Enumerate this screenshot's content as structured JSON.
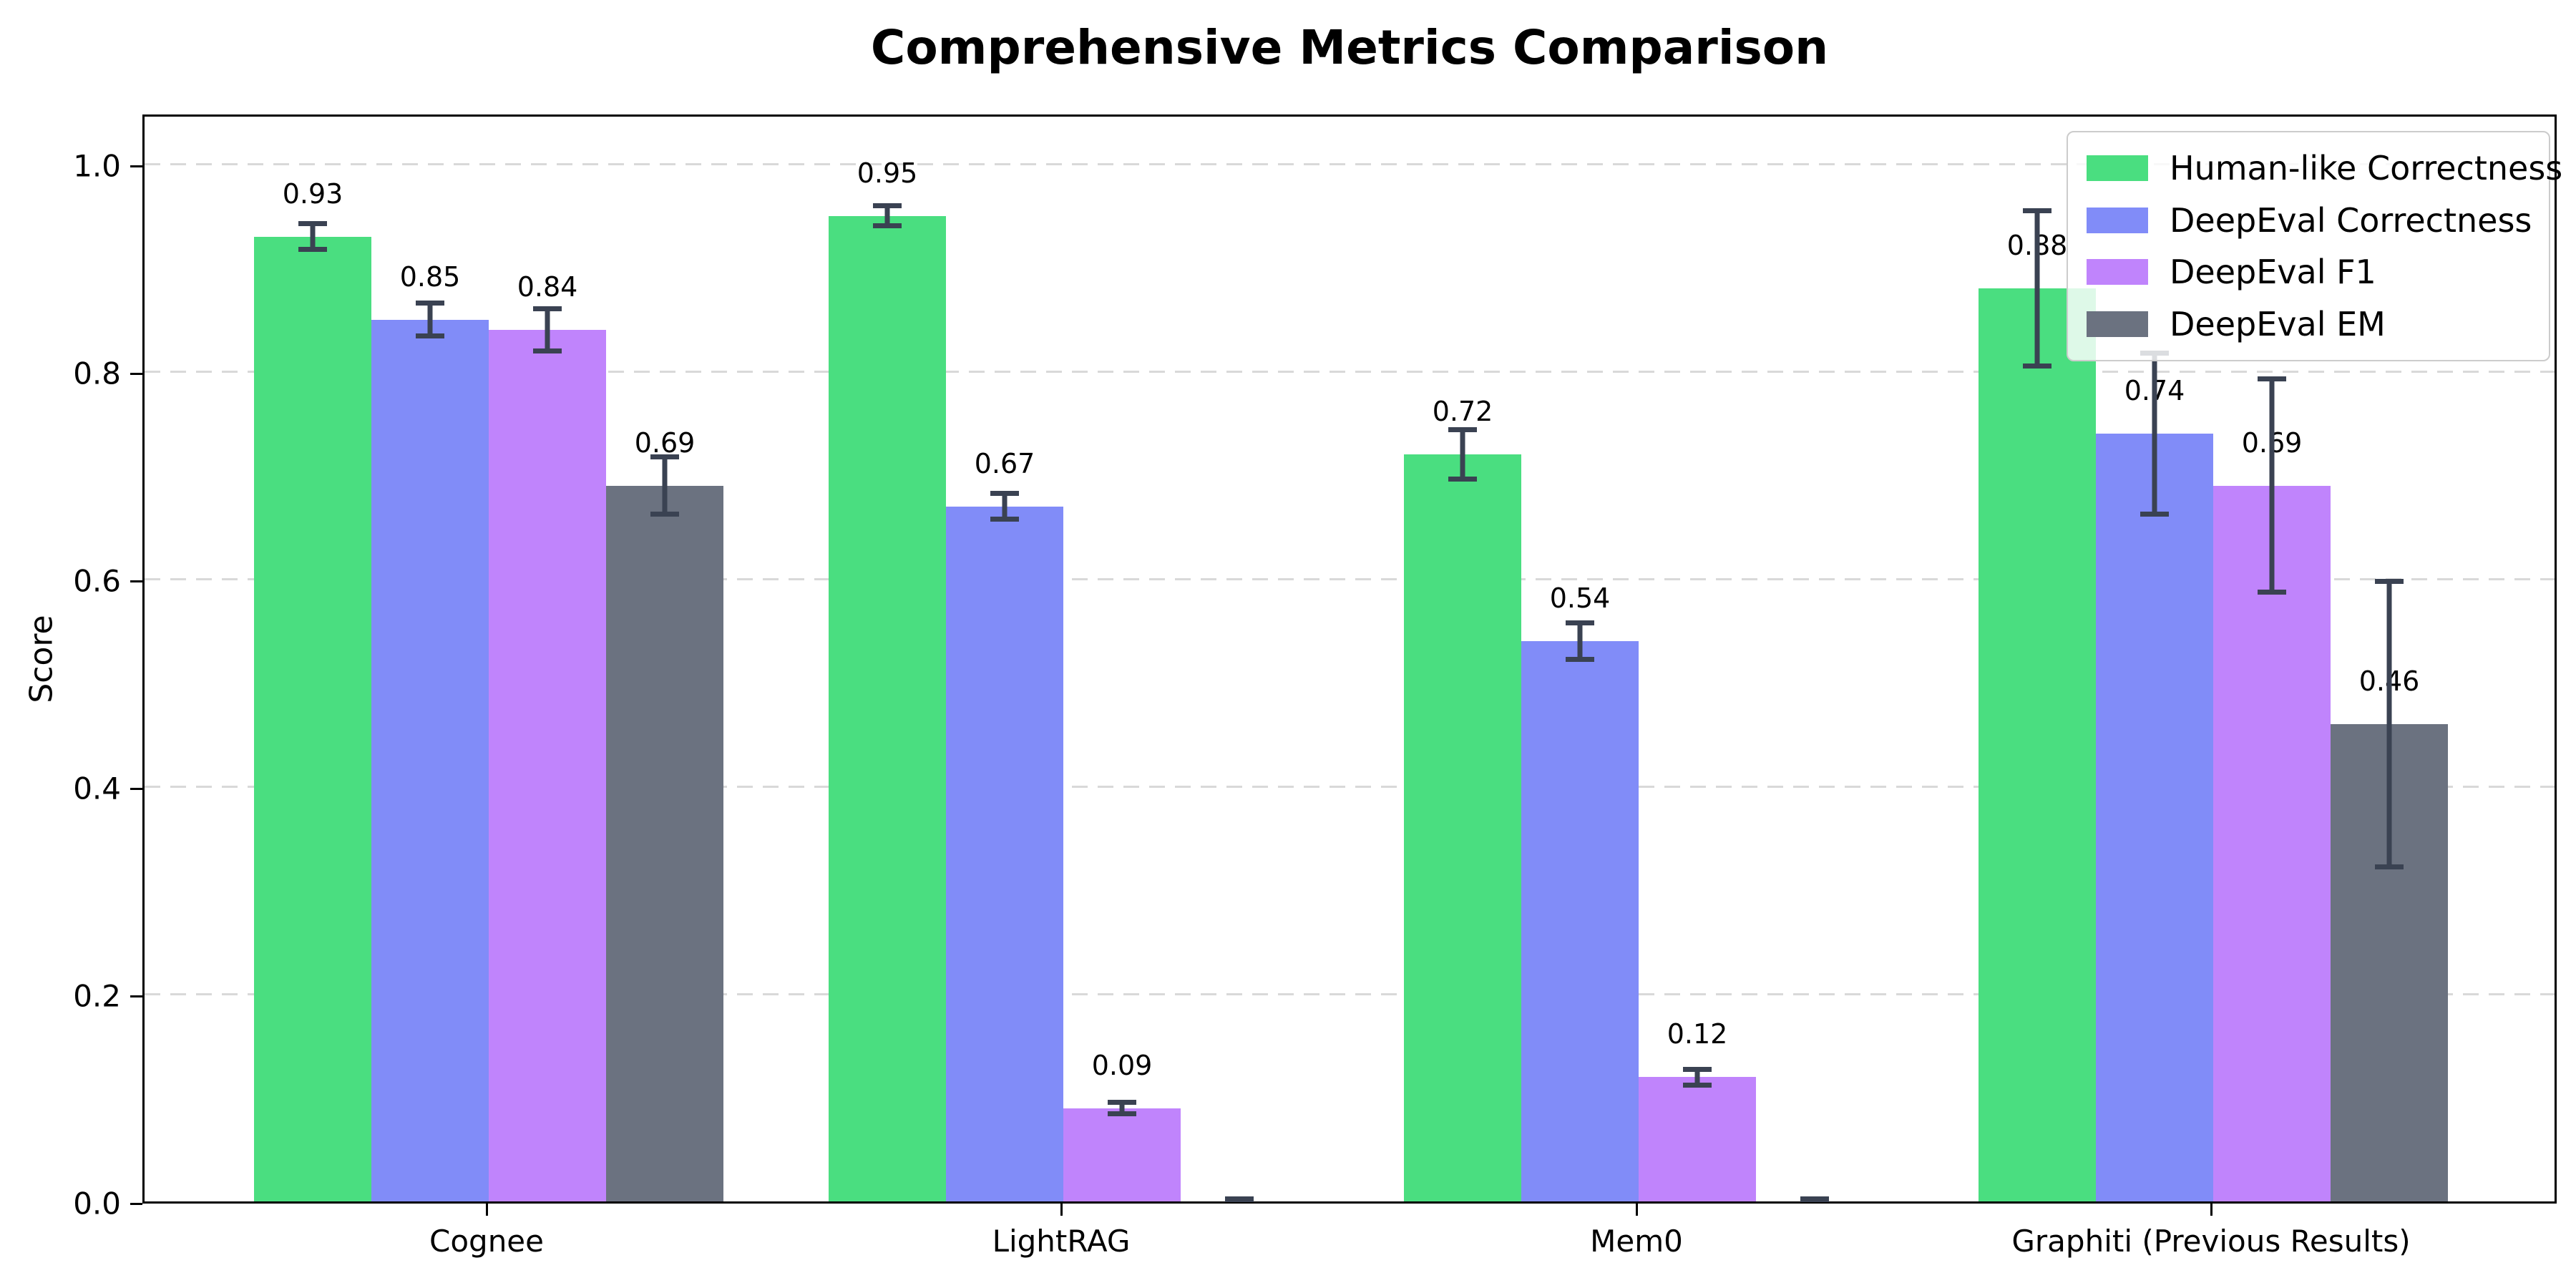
{
  "chart_data": {
    "type": "bar",
    "title": "Comprehensive Metrics Comparison",
    "ylabel": "Score",
    "xlabel": "",
    "categories": [
      "Cognee",
      "LightRAG",
      "Mem0",
      "Graphiti (Previous Results)"
    ],
    "series": [
      {
        "name": "Human-like Correctness",
        "color": "#4ade80",
        "values": [
          0.93,
          0.95,
          0.72,
          0.88
        ],
        "errors": [
          0.015,
          0.012,
          0.026,
          0.077
        ],
        "value_labels": [
          "0.93",
          "0.95",
          "0.72",
          "0.88"
        ]
      },
      {
        "name": "DeepEval Correctness",
        "color": "#818cf8",
        "values": [
          0.85,
          0.67,
          0.54,
          0.74
        ],
        "errors": [
          0.018,
          0.015,
          0.02,
          0.08
        ],
        "value_labels": [
          "0.85",
          "0.67",
          "0.54",
          "0.74"
        ]
      },
      {
        "name": "DeepEval F1",
        "color": "#c084fc",
        "values": [
          0.84,
          0.09,
          0.12,
          0.69
        ],
        "errors": [
          0.023,
          0.008,
          0.01,
          0.105
        ],
        "value_labels": [
          "0.84",
          "0.09",
          "0.12",
          "0.69"
        ]
      },
      {
        "name": "DeepEval EM",
        "color": "#6b7280",
        "values": [
          0.69,
          0.0,
          0.0,
          0.46
        ],
        "errors": [
          0.03,
          0.004,
          0.004,
          0.14
        ],
        "value_labels": [
          "0.69",
          "",
          "",
          "0.46"
        ]
      }
    ],
    "yticks": [
      "0.0",
      "0.2",
      "0.4",
      "0.6",
      "0.8",
      "1.0"
    ],
    "ytick_values": [
      0.0,
      0.2,
      0.4,
      0.6,
      0.8,
      1.0
    ],
    "ylim": [
      0.0,
      1.05
    ],
    "grid": "horizontal dashed",
    "grid_color": "#d9d9d9",
    "legend_position": "upper right",
    "errorbar_color": "#3a4252",
    "spine_color": "#000000",
    "background_color": "#ffffff"
  }
}
